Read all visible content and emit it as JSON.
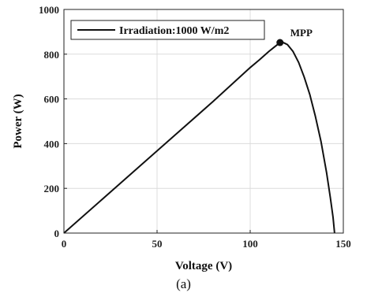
{
  "chart_data": {
    "type": "line",
    "xlabel": "Voltage (V)",
    "ylabel": "Power (W)",
    "xlim": [
      0,
      150
    ],
    "ylim": [
      0,
      1000
    ],
    "xticks": [
      "0",
      "50",
      "100",
      "150"
    ],
    "yticks": [
      "0",
      "200",
      "400",
      "600",
      "800",
      "1000"
    ],
    "grid": true,
    "legend_position": "top-left",
    "series": [
      {
        "name": "Irradiation:1000 W/m2",
        "color": "#111111",
        "x": [
          0,
          20,
          40,
          60,
          80,
          100,
          105,
          110,
          113,
          116,
          118,
          120,
          123,
          126,
          129,
          132,
          135,
          138,
          141,
          143,
          144.5,
          145.3
        ],
        "y": [
          0,
          147,
          294,
          441,
          588,
          740,
          775,
          812,
          832,
          852,
          851,
          843,
          812,
          763,
          698,
          620,
          522,
          410,
          270,
          160,
          70,
          0
        ]
      }
    ],
    "annotations": [
      {
        "label": "MPP",
        "x": 116,
        "y": 852
      }
    ]
  },
  "caption": "(a)"
}
